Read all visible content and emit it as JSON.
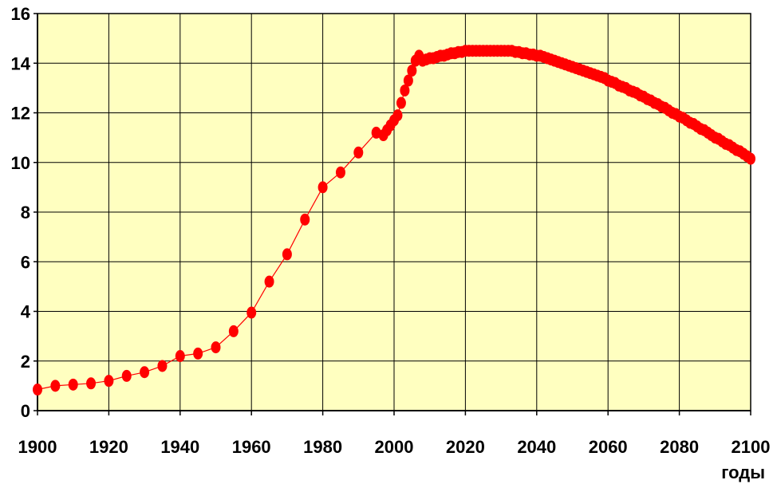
{
  "chart_data": {
    "type": "line",
    "title": "",
    "xlabel": "годы",
    "ylabel": "",
    "xlim": [
      1900,
      2100
    ],
    "ylim": [
      0,
      16
    ],
    "x_ticks": [
      1900,
      1920,
      1940,
      1960,
      1980,
      2000,
      2020,
      2040,
      2060,
      2080,
      2100
    ],
    "y_ticks": [
      0,
      2,
      4,
      6,
      8,
      10,
      12,
      14,
      16
    ],
    "grid": true,
    "legend": "none",
    "colors": {
      "series": "#ff0000",
      "plot_background": "#ffffc0",
      "grid": "#000000"
    },
    "series": [
      {
        "points": [
          [
            1900,
            0.85
          ],
          [
            1905,
            1.0
          ],
          [
            1910,
            1.05
          ],
          [
            1915,
            1.1
          ],
          [
            1920,
            1.2
          ],
          [
            1925,
            1.4
          ],
          [
            1930,
            1.55
          ],
          [
            1935,
            1.8
          ],
          [
            1940,
            2.2
          ],
          [
            1945,
            2.3
          ],
          [
            1950,
            2.55
          ],
          [
            1955,
            3.2
          ],
          [
            1960,
            3.95
          ],
          [
            1965,
            5.2
          ],
          [
            1970,
            6.3
          ],
          [
            1975,
            7.7
          ],
          [
            1980,
            9.0
          ],
          [
            1985,
            9.6
          ],
          [
            1990,
            10.4
          ],
          [
            1995,
            11.2
          ],
          [
            1997,
            11.1
          ],
          [
            1998,
            11.3
          ],
          [
            1999,
            11.5
          ],
          [
            2000,
            11.7
          ],
          [
            2001,
            11.9
          ],
          [
            2002,
            12.4
          ],
          [
            2003,
            12.9
          ],
          [
            2004,
            13.3
          ],
          [
            2005,
            13.7
          ],
          [
            2006,
            14.1
          ],
          [
            2007,
            14.3
          ],
          [
            2008,
            14.1
          ],
          [
            2009,
            14.15
          ],
          [
            2010,
            14.2
          ],
          [
            2011,
            14.2
          ],
          [
            2012,
            14.25
          ],
          [
            2013,
            14.3
          ],
          [
            2014,
            14.3
          ],
          [
            2015,
            14.35
          ],
          [
            2016,
            14.4
          ],
          [
            2017,
            14.4
          ],
          [
            2018,
            14.45
          ],
          [
            2019,
            14.45
          ],
          [
            2020,
            14.5
          ],
          [
            2021,
            14.5
          ],
          [
            2022,
            14.5
          ],
          [
            2023,
            14.5
          ],
          [
            2024,
            14.5
          ],
          [
            2025,
            14.5
          ],
          [
            2026,
            14.5
          ],
          [
            2027,
            14.5
          ],
          [
            2028,
            14.5
          ],
          [
            2029,
            14.5
          ],
          [
            2030,
            14.5
          ],
          [
            2031,
            14.5
          ],
          [
            2032,
            14.5
          ],
          [
            2033,
            14.5
          ],
          [
            2034,
            14.45
          ],
          [
            2035,
            14.45
          ],
          [
            2036,
            14.4
          ],
          [
            2037,
            14.4
          ],
          [
            2038,
            14.35
          ],
          [
            2039,
            14.35
          ],
          [
            2040,
            14.3
          ],
          [
            2041,
            14.3
          ],
          [
            2042,
            14.25
          ],
          [
            2043,
            14.2
          ],
          [
            2044,
            14.15
          ],
          [
            2045,
            14.1
          ],
          [
            2046,
            14.05
          ],
          [
            2047,
            14.0
          ],
          [
            2048,
            13.95
          ],
          [
            2049,
            13.9
          ],
          [
            2050,
            13.85
          ],
          [
            2051,
            13.8
          ],
          [
            2052,
            13.75
          ],
          [
            2053,
            13.7
          ],
          [
            2054,
            13.65
          ],
          [
            2055,
            13.6
          ],
          [
            2056,
            13.55
          ],
          [
            2057,
            13.5
          ],
          [
            2058,
            13.45
          ],
          [
            2059,
            13.4
          ],
          [
            2060,
            13.3
          ],
          [
            2061,
            13.25
          ],
          [
            2062,
            13.2
          ],
          [
            2063,
            13.1
          ],
          [
            2064,
            13.05
          ],
          [
            2065,
            13.0
          ],
          [
            2066,
            12.9
          ],
          [
            2067,
            12.85
          ],
          [
            2068,
            12.8
          ],
          [
            2069,
            12.7
          ],
          [
            2070,
            12.65
          ],
          [
            2071,
            12.55
          ],
          [
            2072,
            12.5
          ],
          [
            2073,
            12.4
          ],
          [
            2074,
            12.35
          ],
          [
            2075,
            12.25
          ],
          [
            2076,
            12.2
          ],
          [
            2077,
            12.1
          ],
          [
            2078,
            12.0
          ],
          [
            2079,
            11.95
          ],
          [
            2080,
            11.85
          ],
          [
            2081,
            11.8
          ],
          [
            2082,
            11.7
          ],
          [
            2083,
            11.6
          ],
          [
            2084,
            11.55
          ],
          [
            2085,
            11.45
          ],
          [
            2086,
            11.35
          ],
          [
            2087,
            11.3
          ],
          [
            2088,
            11.2
          ],
          [
            2089,
            11.1
          ],
          [
            2090,
            11.0
          ],
          [
            2091,
            10.95
          ],
          [
            2092,
            10.85
          ],
          [
            2093,
            10.75
          ],
          [
            2094,
            10.7
          ],
          [
            2095,
            10.6
          ],
          [
            2096,
            10.5
          ],
          [
            2097,
            10.45
          ],
          [
            2098,
            10.35
          ],
          [
            2099,
            10.25
          ],
          [
            2100,
            10.15
          ]
        ]
      }
    ]
  }
}
